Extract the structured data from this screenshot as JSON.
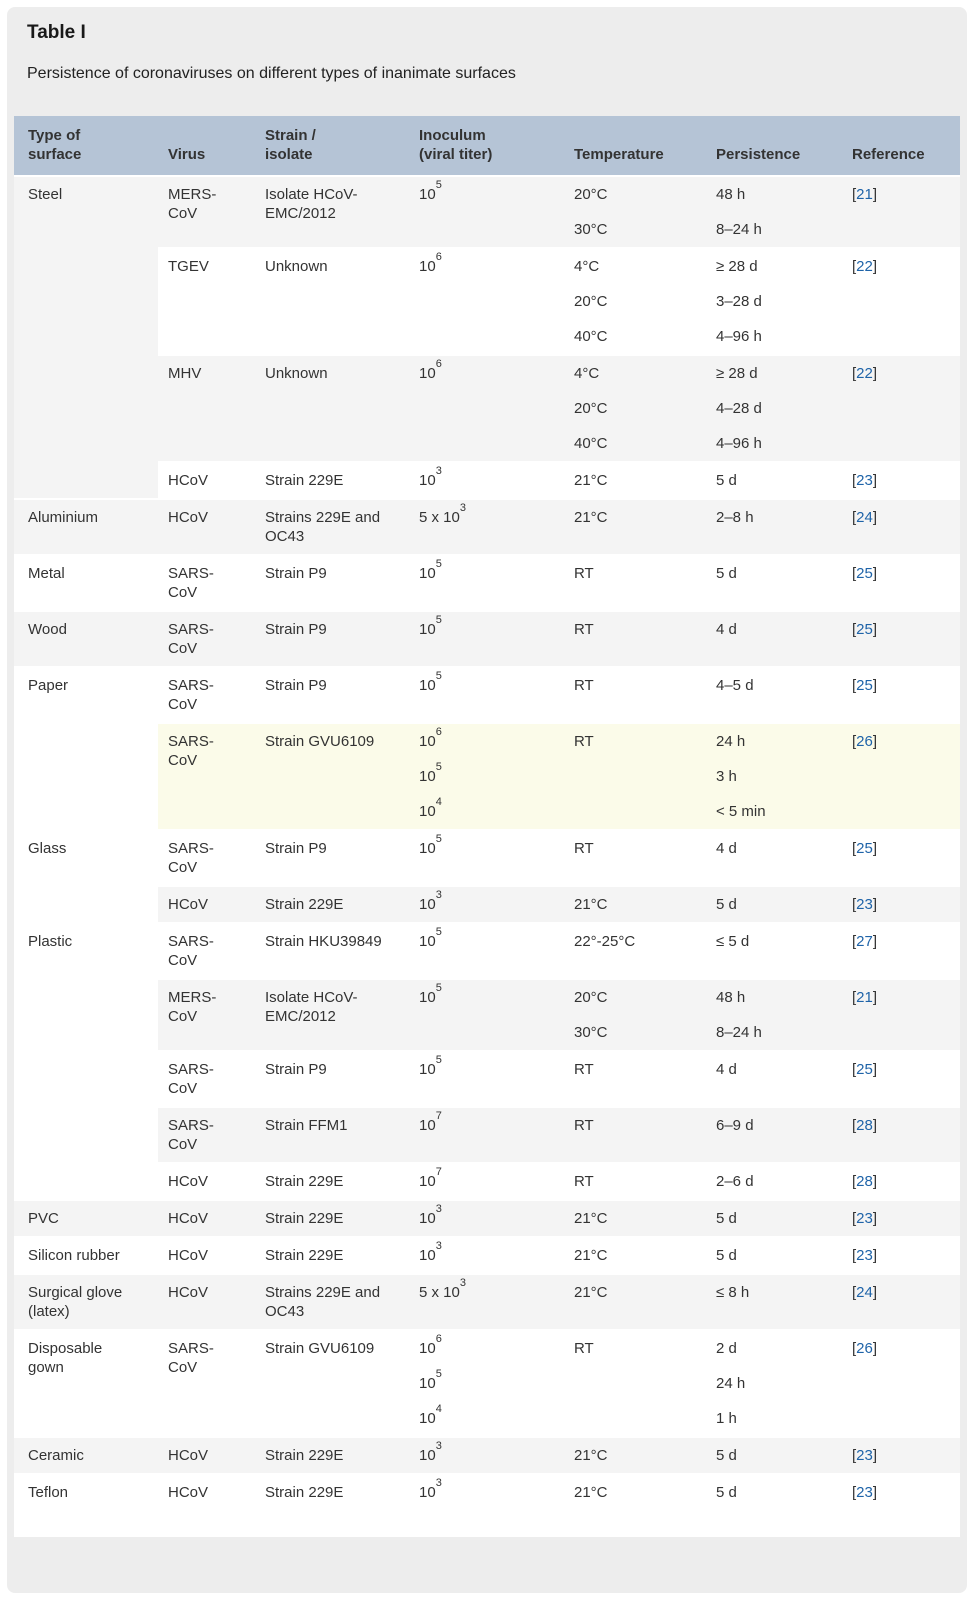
{
  "page": {
    "title": "Table I",
    "subtitle": "Persistence of coronaviruses on different types of inanimate surfaces"
  },
  "colors": {
    "panel_bg": "#ededed",
    "header_bg": "#b5c4d6",
    "row_alt_bg": "#f4f4f4",
    "row_bg": "#ffffff",
    "highlight_row_bg": "#fbfbe9",
    "text": "#333333",
    "reference_link": "#1e63a8"
  },
  "table": {
    "ref_brackets": {
      "open": "[",
      "close": "]"
    },
    "headers": [
      {
        "key": "surface",
        "lines": [
          "Type of",
          "surface"
        ]
      },
      {
        "key": "virus",
        "lines": [
          "Virus"
        ]
      },
      {
        "key": "strain",
        "lines": [
          "Strain /",
          "isolate"
        ]
      },
      {
        "key": "inoculum",
        "lines": [
          "Inoculum",
          "(viral titer)"
        ]
      },
      {
        "key": "temperature",
        "lines": [
          "Temperature"
        ]
      },
      {
        "key": "persistence",
        "lines": [
          "Persistence"
        ]
      },
      {
        "key": "reference",
        "lines": [
          "Reference"
        ]
      }
    ],
    "groups": [
      {
        "surface": "Steel",
        "blocks": [
          {
            "virus": "MERS-CoV",
            "strain": "Isolate HCoV-EMC/2012",
            "shade": "gray",
            "ref": "21",
            "lines": [
              {
                "inoculum": {
                  "base": "10",
                  "exp": "5"
                },
                "temp": "20°C",
                "persistence": "48 h"
              },
              {
                "inoculum": null,
                "temp": "30°C",
                "persistence": "8–24 h"
              }
            ]
          },
          {
            "virus": "TGEV",
            "strain": "Unknown",
            "shade": "white",
            "ref": "22",
            "lines": [
              {
                "inoculum": {
                  "base": "10",
                  "exp": "6"
                },
                "temp": "4°C",
                "persistence": "≥ 28 d"
              },
              {
                "inoculum": null,
                "temp": "20°C",
                "persistence": "3–28 d"
              },
              {
                "inoculum": null,
                "temp": "40°C",
                "persistence": "4–96 h"
              }
            ]
          },
          {
            "virus": "MHV",
            "strain": "Unknown",
            "shade": "gray",
            "ref": "22",
            "lines": [
              {
                "inoculum": {
                  "base": "10",
                  "exp": "6"
                },
                "temp": "4°C",
                "persistence": "≥ 28 d"
              },
              {
                "inoculum": null,
                "temp": "20°C",
                "persistence": "4–28 d"
              },
              {
                "inoculum": null,
                "temp": "40°C",
                "persistence": "4–96 h"
              }
            ]
          },
          {
            "virus": "HCoV",
            "strain": "Strain 229E",
            "shade": "white",
            "ref": "23",
            "lines": [
              {
                "inoculum": {
                  "base": "10",
                  "exp": "3"
                },
                "temp": "21°C",
                "persistence": "5 d"
              }
            ]
          }
        ]
      },
      {
        "surface": "Aluminium",
        "blocks": [
          {
            "virus": "HCoV",
            "strain": "Strains 229E and OC43",
            "shade": "gray",
            "ref": "24",
            "lines": [
              {
                "inoculum": {
                  "base": "5 x 10",
                  "exp": "3"
                },
                "temp": "21°C",
                "persistence": "2–8 h"
              }
            ]
          }
        ]
      },
      {
        "surface": "Metal",
        "blocks": [
          {
            "virus": "SARS-CoV",
            "strain": "Strain P9",
            "shade": "white",
            "ref": "25",
            "lines": [
              {
                "inoculum": {
                  "base": "10",
                  "exp": "5"
                },
                "temp": "RT",
                "persistence": "5 d"
              }
            ]
          }
        ]
      },
      {
        "surface": "Wood",
        "blocks": [
          {
            "virus": "SARS-CoV",
            "strain": "Strain P9",
            "shade": "gray",
            "ref": "25",
            "lines": [
              {
                "inoculum": {
                  "base": "10",
                  "exp": "5"
                },
                "temp": "RT",
                "persistence": "4 d"
              }
            ]
          }
        ]
      },
      {
        "surface": "Paper",
        "blocks": [
          {
            "virus": "SARS-CoV",
            "strain": "Strain P9",
            "shade": "white",
            "ref": "25",
            "lines": [
              {
                "inoculum": {
                  "base": "10",
                  "exp": "5"
                },
                "temp": "RT",
                "persistence": "4–5 d"
              }
            ]
          },
          {
            "virus": "SARS-CoV",
            "strain": "Strain GVU6109",
            "shade": "yellow",
            "ref": "26",
            "lines": [
              {
                "inoculum": {
                  "base": "10",
                  "exp": "6"
                },
                "temp": "RT",
                "persistence": "24 h"
              },
              {
                "inoculum": {
                  "base": "10",
                  "exp": "5"
                },
                "temp": "",
                "persistence": "3 h"
              },
              {
                "inoculum": {
                  "base": "10",
                  "exp": "4"
                },
                "temp": "",
                "persistence": "< 5 min"
              }
            ]
          }
        ]
      },
      {
        "surface": "Glass",
        "blocks": [
          {
            "virus": "SARS-CoV",
            "strain": "Strain P9",
            "shade": "white",
            "ref": "25",
            "lines": [
              {
                "inoculum": {
                  "base": "10",
                  "exp": "5"
                },
                "temp": "RT",
                "persistence": "4 d"
              }
            ]
          },
          {
            "virus": "HCoV",
            "strain": "Strain 229E",
            "shade": "gray",
            "ref": "23",
            "lines": [
              {
                "inoculum": {
                  "base": "10",
                  "exp": "3"
                },
                "temp": "21°C",
                "persistence": "5 d"
              }
            ]
          }
        ]
      },
      {
        "surface": "Plastic",
        "blocks": [
          {
            "virus": "SARS-CoV",
            "strain": "Strain HKU39849",
            "shade": "white",
            "ref": "27",
            "lines": [
              {
                "inoculum": {
                  "base": "10",
                  "exp": "5"
                },
                "temp": "22°-25°C",
                "persistence": "≤ 5 d"
              }
            ]
          },
          {
            "virus": "MERS-CoV",
            "strain": "Isolate HCoV-EMC/2012",
            "shade": "gray",
            "ref": "21",
            "lines": [
              {
                "inoculum": {
                  "base": "10",
                  "exp": "5"
                },
                "temp": "20°C",
                "persistence": "48 h"
              },
              {
                "inoculum": null,
                "temp": "30°C",
                "persistence": "8–24 h"
              }
            ]
          },
          {
            "virus": "SARS-CoV",
            "strain": "Strain P9",
            "shade": "white",
            "ref": "25",
            "lines": [
              {
                "inoculum": {
                  "base": "10",
                  "exp": "5"
                },
                "temp": "RT",
                "persistence": "4 d"
              }
            ]
          },
          {
            "virus": "SARS-CoV",
            "strain": "Strain FFM1",
            "shade": "gray",
            "ref": "28",
            "lines": [
              {
                "inoculum": {
                  "base": "10",
                  "exp": "7"
                },
                "temp": "RT",
                "persistence": "6–9 d"
              }
            ]
          },
          {
            "virus": "HCoV",
            "strain": "Strain 229E",
            "shade": "white",
            "ref": "28",
            "lines": [
              {
                "inoculum": {
                  "base": "10",
                  "exp": "7"
                },
                "temp": "RT",
                "persistence": "2–6 d"
              }
            ]
          }
        ]
      },
      {
        "surface": "PVC",
        "blocks": [
          {
            "virus": "HCoV",
            "strain": "Strain 229E",
            "shade": "gray",
            "ref": "23",
            "lines": [
              {
                "inoculum": {
                  "base": "10",
                  "exp": "3"
                },
                "temp": "21°C",
                "persistence": "5 d"
              }
            ]
          }
        ]
      },
      {
        "surface": "Silicon rubber",
        "blocks": [
          {
            "virus": "HCoV",
            "strain": "Strain 229E",
            "shade": "white",
            "ref": "23",
            "lines": [
              {
                "inoculum": {
                  "base": "10",
                  "exp": "3"
                },
                "temp": "21°C",
                "persistence": "5 d"
              }
            ]
          }
        ]
      },
      {
        "surface": "Surgical glove (latex)",
        "blocks": [
          {
            "virus": "HCoV",
            "strain": "Strains 229E and OC43",
            "shade": "gray",
            "ref": "24",
            "lines": [
              {
                "inoculum": {
                  "base": "5 x 10",
                  "exp": "3"
                },
                "temp": "21°C",
                "persistence": "≤ 8 h"
              }
            ]
          }
        ]
      },
      {
        "surface": "Disposable gown",
        "blocks": [
          {
            "virus": "SARS-CoV",
            "strain": "Strain GVU6109",
            "shade": "white",
            "ref": "26",
            "lines": [
              {
                "inoculum": {
                  "base": "10",
                  "exp": "6"
                },
                "temp": "RT",
                "persistence": "2 d"
              },
              {
                "inoculum": {
                  "base": "10",
                  "exp": "5"
                },
                "temp": "",
                "persistence": "24 h"
              },
              {
                "inoculum": {
                  "base": "10",
                  "exp": "4"
                },
                "temp": "",
                "persistence": "1 h"
              }
            ]
          }
        ]
      },
      {
        "surface": "Ceramic",
        "blocks": [
          {
            "virus": "HCoV",
            "strain": "Strain 229E",
            "shade": "gray",
            "ref": "23",
            "lines": [
              {
                "inoculum": {
                  "base": "10",
                  "exp": "3"
                },
                "temp": "21°C",
                "persistence": "5 d"
              }
            ]
          }
        ]
      },
      {
        "surface": "Teflon",
        "blocks": [
          {
            "virus": "HCoV",
            "strain": "Strain 229E",
            "shade": "white",
            "ref": "23",
            "lines": [
              {
                "inoculum": {
                  "base": "10",
                  "exp": "3"
                },
                "temp": "21°C",
                "persistence": "5 d"
              }
            ]
          }
        ]
      }
    ]
  }
}
